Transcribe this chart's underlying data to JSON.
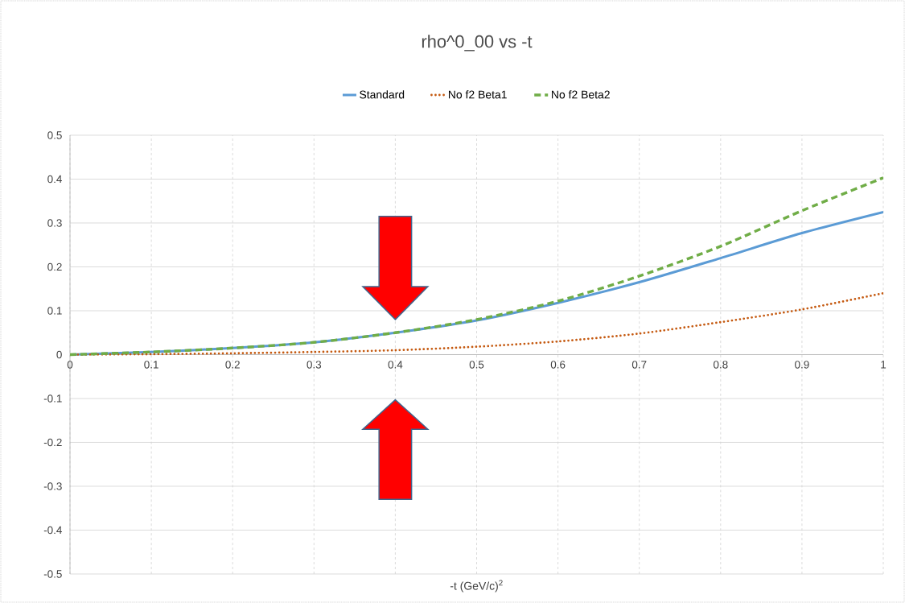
{
  "chart_data": {
    "type": "line",
    "title": "rho^0_00 vs -t",
    "xlabel": "-t (GeV/c)$^{2}$",
    "x": [
      0,
      0.1,
      0.2,
      0.3,
      0.4,
      0.5,
      0.6,
      0.7,
      0.8,
      0.9,
      1.0
    ],
    "series": [
      {
        "name": "Standard",
        "color": "#5b9bd5",
        "line_style": "solid",
        "values": [
          0,
          0.006,
          0.015,
          0.028,
          0.05,
          0.078,
          0.118,
          0.165,
          0.22,
          0.277,
          0.325
        ]
      },
      {
        "name": "No f2 Beta1",
        "color": "#c55a11",
        "line_style": "dotted",
        "values": [
          0,
          0.001,
          0.003,
          0.006,
          0.01,
          0.018,
          0.03,
          0.048,
          0.074,
          0.103,
          0.14
        ]
      },
      {
        "name": "No f2 Beta2",
        "color": "#70ad47",
        "line_style": "dashed",
        "values": [
          0,
          0.006,
          0.015,
          0.028,
          0.05,
          0.08,
          0.122,
          0.179,
          0.247,
          0.328,
          0.403
        ]
      }
    ],
    "xlim": [
      0,
      1
    ],
    "ylim": [
      -0.5,
      0.5
    ],
    "xticks": [
      0,
      0.1,
      0.2,
      0.3,
      0.4,
      0.5,
      0.6,
      0.7,
      0.8,
      0.9,
      1
    ],
    "yticks": [
      -0.5,
      -0.4,
      -0.3,
      -0.2,
      -0.1,
      0,
      0.1,
      0.2,
      0.3,
      0.4,
      0.5
    ],
    "grid": true,
    "legend": "top",
    "marker": "none"
  }
}
